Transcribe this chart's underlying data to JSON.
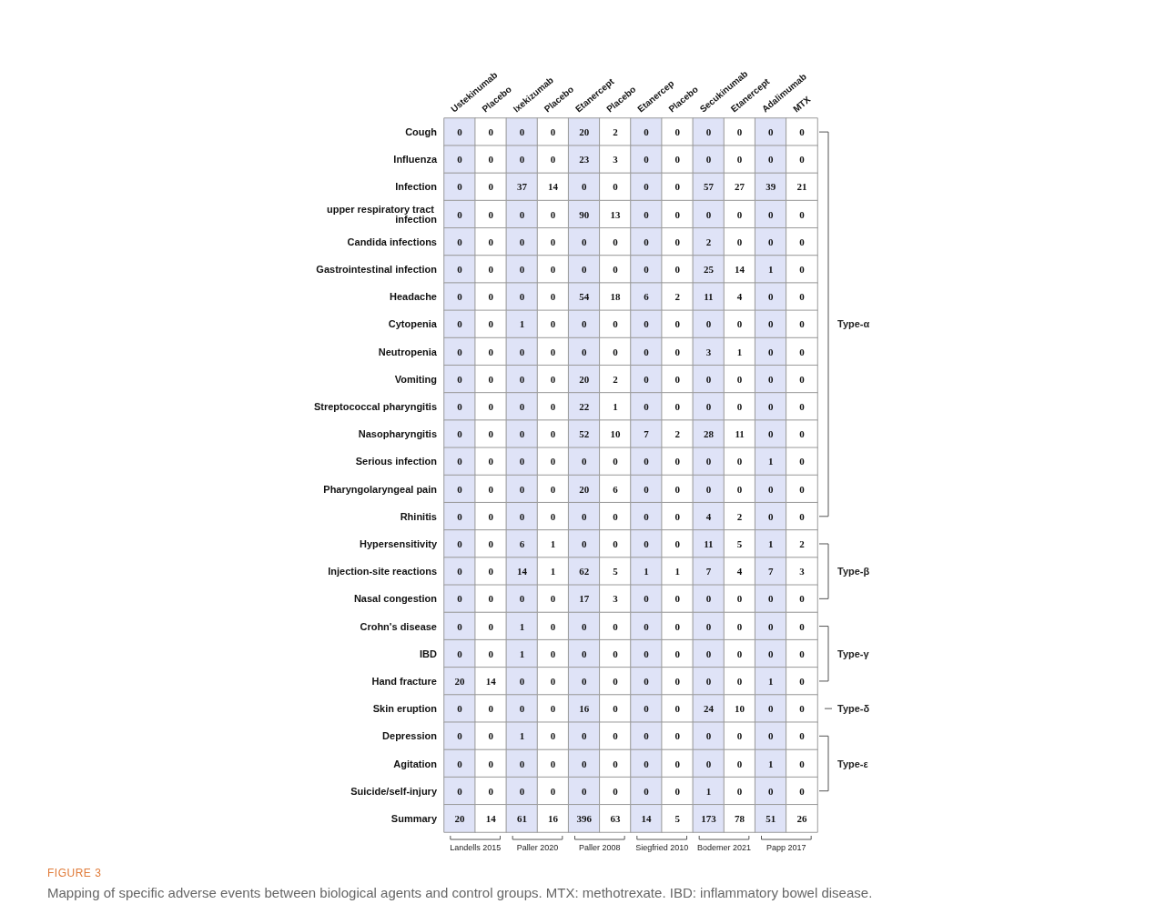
{
  "chart_data": {
    "type": "heatmap",
    "title": "FIGURE 3",
    "subtitle": "Mapping of specific adverse events between biological agents and control groups. MTX: methotrexate. IBD: inflammatory bowel disease.",
    "categories": [
      "Ustekinumab",
      "Placebo",
      "Ixekizumab",
      "Placebo",
      "Etanercept",
      "Placebo",
      "Etanercep",
      "Placebo",
      "Secukinumab",
      "Etanercept",
      "Adalimumab",
      "MTX"
    ],
    "colors": [
      "#dfe3f7",
      "#ffffff",
      "#dfe3f7",
      "#ffffff",
      "#dfe3f7",
      "#ffffff",
      "#dfe3f7",
      "#ffffff",
      "#dfe3f7",
      "#ffffff",
      "#dfe3f7",
      "#ffffff"
    ],
    "y_categories": [
      "Cough",
      "Influenza",
      "Infection",
      "upper respiratory tract infection",
      "Candida infections",
      "Gastrointestinal infection",
      "Headache",
      "Cytopenia",
      "Neutropenia",
      "Vomiting",
      "Streptococcal pharyngitis",
      "Nasopharyngitis",
      "Serious infection",
      "Pharyngolaryngeal pain",
      "Rhinitis",
      "Hypersensitivity",
      "Injection-site reactions",
      "Nasal congestion",
      "Crohn's disease",
      "IBD",
      "Hand fracture",
      "Skin eruption",
      "Depression",
      "Agitation",
      "Suicide/self-injury",
      "Summary"
    ],
    "cells": [
      [
        0,
        0,
        0,
        0,
        20,
        2,
        0,
        0,
        0,
        0,
        0,
        0
      ],
      [
        0,
        0,
        0,
        0,
        23,
        3,
        0,
        0,
        0,
        0,
        0,
        0
      ],
      [
        0,
        0,
        37,
        14,
        0,
        0,
        0,
        0,
        57,
        27,
        39,
        21
      ],
      [
        0,
        0,
        0,
        0,
        90,
        13,
        0,
        0,
        0,
        0,
        0,
        0
      ],
      [
        0,
        0,
        0,
        0,
        0,
        0,
        0,
        0,
        2,
        0,
        0,
        0
      ],
      [
        0,
        0,
        0,
        0,
        0,
        0,
        0,
        0,
        25,
        14,
        1,
        0
      ],
      [
        0,
        0,
        0,
        0,
        54,
        18,
        6,
        2,
        11,
        4,
        0,
        0
      ],
      [
        0,
        0,
        1,
        0,
        0,
        0,
        0,
        0,
        0,
        0,
        0,
        0
      ],
      [
        0,
        0,
        0,
        0,
        0,
        0,
        0,
        0,
        3,
        1,
        0,
        0
      ],
      [
        0,
        0,
        0,
        0,
        20,
        2,
        0,
        0,
        0,
        0,
        0,
        0
      ],
      [
        0,
        0,
        0,
        0,
        22,
        1,
        0,
        0,
        0,
        0,
        0,
        0
      ],
      [
        0,
        0,
        0,
        0,
        52,
        10,
        7,
        2,
        28,
        11,
        0,
        0
      ],
      [
        0,
        0,
        0,
        0,
        0,
        0,
        0,
        0,
        0,
        0,
        1,
        0
      ],
      [
        0,
        0,
        0,
        0,
        20,
        6,
        0,
        0,
        0,
        0,
        0,
        0
      ],
      [
        0,
        0,
        0,
        0,
        0,
        0,
        0,
        0,
        4,
        2,
        0,
        0
      ],
      [
        0,
        0,
        6,
        1,
        0,
        0,
        0,
        0,
        11,
        5,
        1,
        2
      ],
      [
        0,
        0,
        14,
        1,
        62,
        5,
        1,
        1,
        7,
        4,
        7,
        3
      ],
      [
        0,
        0,
        0,
        0,
        17,
        3,
        0,
        0,
        0,
        0,
        0,
        0
      ],
      [
        0,
        0,
        1,
        0,
        0,
        0,
        0,
        0,
        0,
        0,
        0,
        0
      ],
      [
        0,
        0,
        1,
        0,
        0,
        0,
        0,
        0,
        0,
        0,
        0,
        0
      ],
      [
        20,
        14,
        0,
        0,
        0,
        0,
        0,
        0,
        0,
        0,
        1,
        0
      ],
      [
        0,
        0,
        0,
        0,
        16,
        0,
        0,
        0,
        24,
        10,
        0,
        0
      ],
      [
        0,
        0,
        1,
        0,
        0,
        0,
        0,
        0,
        0,
        0,
        0,
        0
      ],
      [
        0,
        0,
        0,
        0,
        0,
        0,
        0,
        0,
        0,
        0,
        1,
        0
      ],
      [
        0,
        0,
        0,
        0,
        0,
        0,
        0,
        0,
        1,
        0,
        0,
        0
      ],
      [
        20,
        14,
        61,
        16,
        396,
        63,
        14,
        5,
        173,
        78,
        51,
        26
      ]
    ],
    "data_labels": true,
    "y2_categories": [
      null,
      null,
      null,
      null,
      null,
      null,
      null,
      "Type-α",
      null,
      null,
      null,
      null,
      null,
      null,
      null,
      null,
      "Type-β",
      null,
      null,
      "Type-γ",
      null,
      "Type-δ",
      null,
      "Type-ε",
      null,
      null
    ],
    "annotations": [
      "Landells 2015",
      "Paller 2020",
      "Paller 2008",
      "Siegfried 2010",
      "Bodemer 2021",
      "Papp 2017"
    ]
  }
}
